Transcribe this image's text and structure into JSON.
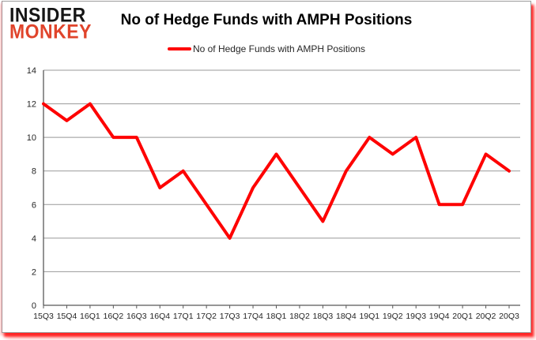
{
  "logo": {
    "line1": "INSIDER",
    "line2": "MONKEY"
  },
  "header": {
    "title": "No of Hedge Funds with AMPH Positions"
  },
  "legend": {
    "label": "No of Hedge Funds with AMPH Positions"
  },
  "colors": {
    "series": "#fe0000",
    "gridline": "#999999",
    "axis": "#595959",
    "tick_text": "#262626",
    "logo_monkey": "#e0442b",
    "glow": "#ff1a1a"
  },
  "chart_data": {
    "type": "line",
    "title": "No of Hedge Funds with AMPH Positions",
    "xlabel": "",
    "ylabel": "",
    "categories": [
      "15Q3",
      "15Q4",
      "16Q1",
      "16Q2",
      "16Q3",
      "16Q4",
      "17Q1",
      "17Q2",
      "17Q3",
      "17Q4",
      "18Q1",
      "18Q2",
      "18Q3",
      "18Q4",
      "19Q1",
      "19Q2",
      "19Q3",
      "19Q4",
      "20Q1",
      "20Q2",
      "20Q3"
    ],
    "series": [
      {
        "name": "No of Hedge Funds with AMPH Positions",
        "values": [
          12,
          11,
          12,
          10,
          10,
          7,
          8,
          6,
          4,
          7,
          9,
          7,
          5,
          8,
          10,
          9,
          10,
          6,
          6,
          9,
          8
        ]
      }
    ],
    "ylim": [
      0,
      14
    ],
    "ytick_step": 2,
    "grid": true,
    "legend_position": "top"
  }
}
